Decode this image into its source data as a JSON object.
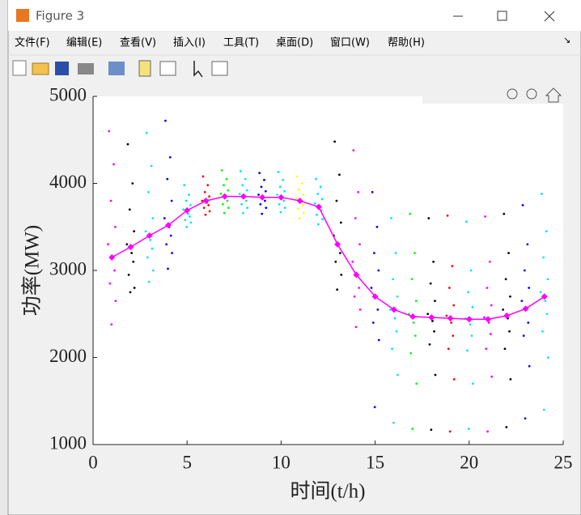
{
  "window": {
    "title": "Figure 3",
    "menu": [
      "文件(F)",
      "编辑(E)",
      "查看(V)",
      "插入(I)",
      "工具(T)",
      "桌面(D)",
      "窗口(W)",
      "帮助(H)"
    ]
  },
  "chart_data": {
    "type": "scatter",
    "xlabel": "时间(t/h)",
    "ylabel": "功率(MW)",
    "xlim": [
      0,
      25
    ],
    "xticks": [
      0,
      5,
      10,
      15,
      20,
      25
    ],
    "ylim": [
      1000,
      5000
    ],
    "yticks": [
      1000,
      2000,
      3000,
      4000,
      5000
    ],
    "mean_line": {
      "color": "#ff00ff",
      "x": [
        1,
        2,
        3,
        4,
        5,
        6,
        7,
        8,
        9,
        10,
        11,
        12,
        13,
        14,
        15,
        16,
        17,
        18,
        19,
        20,
        21,
        22,
        23,
        24
      ],
      "values": [
        3150,
        3270,
        3400,
        3520,
        3690,
        3800,
        3850,
        3850,
        3840,
        3840,
        3800,
        3730,
        3300,
        2950,
        2700,
        2550,
        2470,
        2460,
        2450,
        2440,
        2440,
        2480,
        2560,
        2700
      ]
    },
    "clusters": [
      {
        "x": 1,
        "color": "#ff00ff",
        "values": [
          4600,
          4220,
          3800,
          3500,
          3300,
          3150,
          3000,
          2850,
          2650,
          2380
        ]
      },
      {
        "x": 2,
        "color": "#000000",
        "values": [
          4450,
          4000,
          3700,
          3450,
          3300,
          3200,
          3100,
          2950,
          2800,
          2750
        ]
      },
      {
        "x": 3,
        "color": "#00e5ff",
        "values": [
          4580,
          4200,
          3900,
          3600,
          3450,
          3350,
          3250,
          3150,
          3000,
          2870
        ]
      },
      {
        "x": 4,
        "color": "#0000ff",
        "values": [
          4720,
          4300,
          4050,
          3800,
          3600,
          3500,
          3400,
          3300,
          3200,
          3020
        ]
      },
      {
        "x": 5,
        "color": "#00e5ff",
        "values": [
          3980,
          3870,
          3800,
          3750,
          3700,
          3650,
          3620,
          3580,
          3550,
          3500
        ]
      },
      {
        "x": 6,
        "color": "#ff0000",
        "values": [
          4080,
          3980,
          3900,
          3850,
          3800,
          3780,
          3750,
          3720,
          3680,
          3640
        ]
      },
      {
        "x": 7,
        "color": "#00ff00",
        "values": [
          4150,
          4050,
          3980,
          3920,
          3880,
          3850,
          3800,
          3760,
          3720,
          3660
        ]
      },
      {
        "x": 8,
        "color": "#00e5ff",
        "values": [
          4140,
          4050,
          3980,
          3920,
          3880,
          3850,
          3800,
          3760,
          3720,
          3660
        ]
      },
      {
        "x": 9,
        "color": "#0000ff",
        "values": [
          4120,
          4040,
          3960,
          3910,
          3870,
          3840,
          3800,
          3760,
          3720,
          3650
        ]
      },
      {
        "x": 10,
        "color": "#00e5ff",
        "values": [
          4130,
          4040,
          3960,
          3910,
          3870,
          3840,
          3800,
          3760,
          3720,
          3670
        ]
      },
      {
        "x": 11,
        "color": "#ffff00",
        "values": [
          4080,
          4000,
          3930,
          3870,
          3830,
          3790,
          3750,
          3710,
          3660,
          3600
        ]
      },
      {
        "x": 12,
        "color": "#00e5ff",
        "values": [
          4050,
          3960,
          3880,
          3820,
          3770,
          3730,
          3690,
          3640,
          3590,
          3530
        ]
      },
      {
        "x": 13,
        "color": "#000000",
        "values": [
          4480,
          4100,
          3800,
          3550,
          3400,
          3300,
          3200,
          3100,
          2950,
          2780
        ]
      },
      {
        "x": 14,
        "color": "#ff00ff",
        "values": [
          4380,
          3900,
          3600,
          3300,
          3100,
          2950,
          2800,
          2700,
          2550,
          2350
        ]
      },
      {
        "x": 15,
        "color": "#0000ff",
        "values": [
          3900,
          3500,
          3200,
          3000,
          2800,
          2700,
          2550,
          2400,
          2200,
          1430
        ]
      },
      {
        "x": 16,
        "color": "#00e5ff",
        "values": [
          3600,
          3200,
          2900,
          2700,
          2550,
          2450,
          2300,
          2100,
          1800,
          1250
        ]
      },
      {
        "x": 17,
        "color": "#00ff00",
        "values": [
          3650,
          3200,
          2900,
          2650,
          2500,
          2400,
          2250,
          2050,
          1700,
          1180
        ]
      },
      {
        "x": 18,
        "color": "#000000",
        "values": [
          3600,
          3100,
          2850,
          2650,
          2500,
          2420,
          2300,
          2150,
          1800,
          1170
        ]
      },
      {
        "x": 19,
        "color": "#ff0000",
        "values": [
          3630,
          3050,
          2800,
          2600,
          2480,
          2400,
          2250,
          2100,
          1750,
          1150
        ]
      },
      {
        "x": 20,
        "color": "#00e5ff",
        "values": [
          3560,
          3000,
          2750,
          2580,
          2450,
          2380,
          2250,
          2080,
          1700,
          1180
        ]
      },
      {
        "x": 21,
        "color": "#ff00ff",
        "values": [
          3620,
          3100,
          2800,
          2600,
          2460,
          2400,
          2270,
          2100,
          1780,
          1150
        ]
      },
      {
        "x": 22,
        "color": "#000000",
        "values": [
          3650,
          3200,
          2900,
          2700,
          2550,
          2450,
          2300,
          2100,
          1750,
          1200
        ]
      },
      {
        "x": 23,
        "color": "#0000ff",
        "values": [
          3750,
          3300,
          3000,
          2800,
          2650,
          2550,
          2400,
          2250,
          1900,
          1300
        ]
      },
      {
        "x": 24,
        "color": "#00e5ff",
        "values": [
          3880,
          3450,
          3150,
          2900,
          2750,
          2650,
          2500,
          2300,
          2000,
          1400
        ]
      }
    ]
  }
}
